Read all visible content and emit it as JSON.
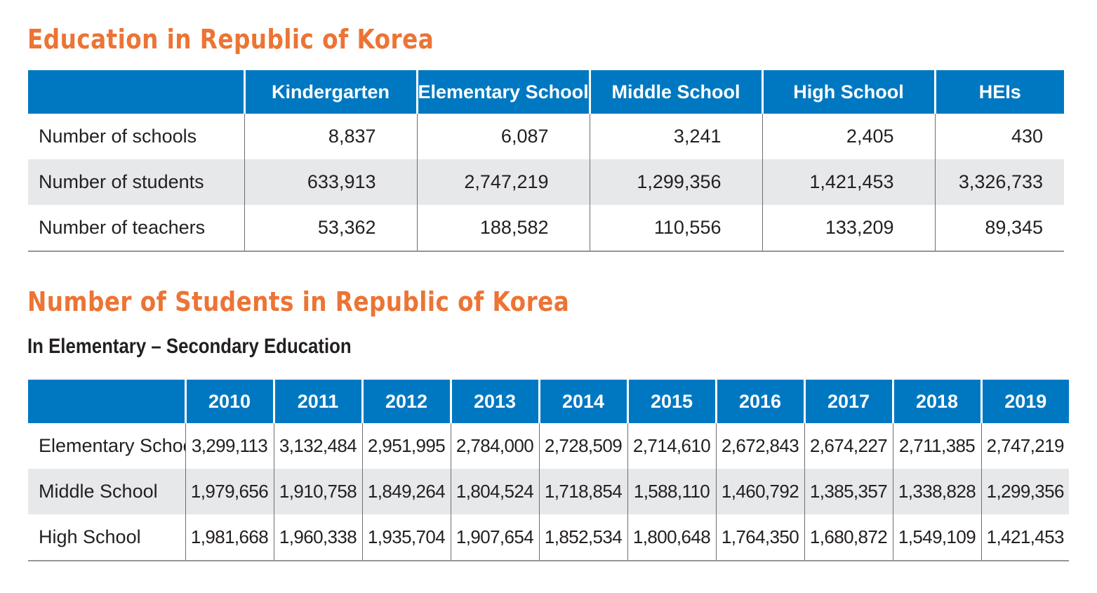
{
  "section1": {
    "title": "Education in Republic of Korea",
    "columns": [
      "Kindergarten",
      "Elementary School",
      "Middle School",
      "High School",
      "HEIs"
    ],
    "rows": [
      {
        "label": "Number of schools",
        "values": [
          "8,837",
          "6,087",
          "3,241",
          "2,405",
          "430"
        ]
      },
      {
        "label": "Number of students",
        "values": [
          "633,913",
          "2,747,219",
          "1,299,356",
          "1,421,453",
          "3,326,733"
        ]
      },
      {
        "label": "Number of teachers",
        "values": [
          "53,362",
          "188,582",
          "110,556",
          "133,209",
          "89,345"
        ]
      }
    ]
  },
  "section2": {
    "title": "Number of Students in Republic of Korea",
    "subtitle": "In Elementary – Secondary Education",
    "columns": [
      "2010",
      "2011",
      "2012",
      "2013",
      "2014",
      "2015",
      "2016",
      "2017",
      "2018",
      "2019"
    ],
    "rows": [
      {
        "label": "Elementary School",
        "values": [
          "3,299,113",
          "3,132,484",
          "2,951,995",
          "2,784,000",
          "2,728,509",
          "2,714,610",
          "2,672,843",
          "2,674,227",
          "2,711,385",
          "2,747,219"
        ]
      },
      {
        "label": "Middle School",
        "values": [
          "1,979,656",
          "1,910,758",
          "1,849,264",
          "1,804,524",
          "1,718,854",
          "1,588,110",
          "1,460,792",
          "1,385,357",
          "1,338,828",
          "1,299,356"
        ]
      },
      {
        "label": "High School",
        "values": [
          "1,981,668",
          "1,960,338",
          "1,935,704",
          "1,907,654",
          "1,852,534",
          "1,800,648",
          "1,764,350",
          "1,680,872",
          "1,549,109",
          "1,421,453"
        ]
      }
    ]
  },
  "colors": {
    "title": "#ec7434",
    "header_bg": "#0078c1",
    "header_text": "#ffffff",
    "stripe_bg": "#e7e8ea"
  }
}
